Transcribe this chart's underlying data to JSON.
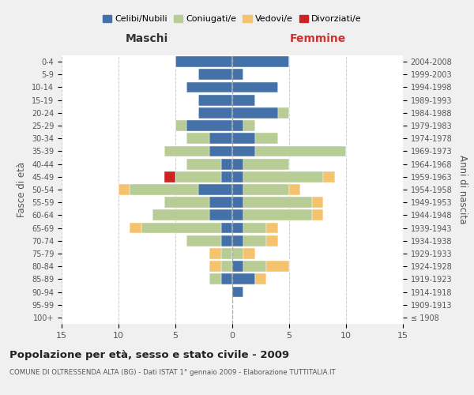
{
  "age_groups": [
    "100+",
    "95-99",
    "90-94",
    "85-89",
    "80-84",
    "75-79",
    "70-74",
    "65-69",
    "60-64",
    "55-59",
    "50-54",
    "45-49",
    "40-44",
    "35-39",
    "30-34",
    "25-29",
    "20-24",
    "15-19",
    "10-14",
    "5-9",
    "0-4"
  ],
  "birth_years": [
    "≤ 1908",
    "1909-1913",
    "1914-1918",
    "1919-1923",
    "1924-1928",
    "1929-1933",
    "1934-1938",
    "1939-1943",
    "1944-1948",
    "1949-1953",
    "1954-1958",
    "1959-1963",
    "1964-1968",
    "1969-1973",
    "1974-1978",
    "1979-1983",
    "1984-1988",
    "1989-1993",
    "1994-1998",
    "1999-2003",
    "2004-2008"
  ],
  "males": {
    "celibi": [
      0,
      0,
      0,
      1,
      0,
      0,
      1,
      1,
      2,
      2,
      3,
      1,
      1,
      2,
      2,
      4,
      3,
      3,
      4,
      3,
      5
    ],
    "coniugati": [
      0,
      0,
      0,
      1,
      1,
      1,
      3,
      7,
      5,
      4,
      6,
      4,
      3,
      4,
      2,
      1,
      0,
      0,
      0,
      0,
      0
    ],
    "vedovi": [
      0,
      0,
      0,
      0,
      1,
      1,
      0,
      1,
      0,
      0,
      1,
      0,
      0,
      0,
      0,
      0,
      0,
      0,
      0,
      0,
      0
    ],
    "divorziati": [
      0,
      0,
      0,
      0,
      0,
      0,
      0,
      0,
      0,
      0,
      0,
      1,
      0,
      0,
      0,
      0,
      0,
      0,
      0,
      0,
      0
    ]
  },
  "females": {
    "nubili": [
      0,
      0,
      1,
      2,
      1,
      0,
      1,
      1,
      1,
      1,
      1,
      1,
      1,
      2,
      2,
      1,
      4,
      2,
      4,
      1,
      5
    ],
    "coniugate": [
      0,
      0,
      0,
      0,
      2,
      1,
      2,
      2,
      6,
      6,
      4,
      7,
      4,
      8,
      2,
      1,
      1,
      0,
      0,
      0,
      0
    ],
    "vedove": [
      0,
      0,
      0,
      1,
      2,
      1,
      1,
      1,
      1,
      1,
      1,
      1,
      0,
      0,
      0,
      0,
      0,
      0,
      0,
      0,
      0
    ],
    "divorziate": [
      0,
      0,
      0,
      0,
      0,
      0,
      0,
      0,
      0,
      0,
      0,
      0,
      0,
      0,
      0,
      0,
      0,
      0,
      0,
      0,
      0
    ]
  },
  "colors": {
    "celibi": "#4472a8",
    "coniugati": "#b8cc96",
    "vedovi": "#f5c36e",
    "divorziati": "#cc2222"
  },
  "xlim": 15,
  "title": "Popolazione per età, sesso e stato civile - 2009",
  "subtitle": "COMUNE DI OLTRESSENDA ALTA (BG) - Dati ISTAT 1° gennaio 2009 - Elaborazione TUTTITALIA.IT",
  "ylabel_left": "Fasce di età",
  "ylabel_right": "Anni di nascita",
  "legend_labels": [
    "Celibi/Nubili",
    "Coniugati/e",
    "Vedovi/e",
    "Divorziati/e"
  ],
  "bg_color": "#f0f0f0",
  "plot_bg_color": "#ffffff"
}
